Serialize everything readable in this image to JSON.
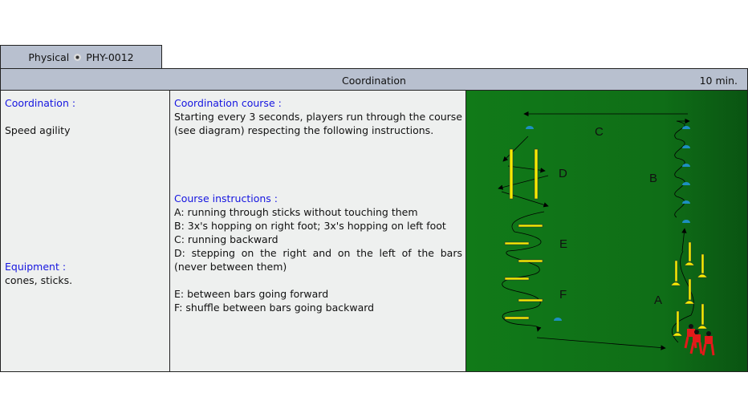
{
  "tab": {
    "category": "Physical",
    "code": "PHY-0012"
  },
  "header": {
    "title": "Coordination",
    "duration": "10 min."
  },
  "left": {
    "objective_label": "Coordination :",
    "objective_value": "Speed agility",
    "equipment_label": "Equipment :",
    "equipment_value": "cones, sticks."
  },
  "middle": {
    "course_title": "Coordination course :",
    "course_text": "Starting every 3 seconds, players run through the course (see diagram) respecting the following instructions.",
    "instructions_title": "Course instructions :",
    "instructions": [
      "A: running through sticks without touching them",
      "B: 3x's hopping on right foot; 3x's hopping on left foot",
      "C: running backward",
      "D: stepping on the right and on the left of the bars (never between them)",
      "",
      "E: between bars going forward",
      "F: shuffle between bars going backward"
    ]
  },
  "diagram": {
    "labels": {
      "a": "A",
      "b": "B",
      "c": "C",
      "d": "D",
      "e": "E",
      "f": "F"
    },
    "colors": {
      "pitch": "#117a18",
      "cone": "#1e8fc0",
      "stick": "#f5ec00",
      "player": "#e21a1a"
    }
  }
}
